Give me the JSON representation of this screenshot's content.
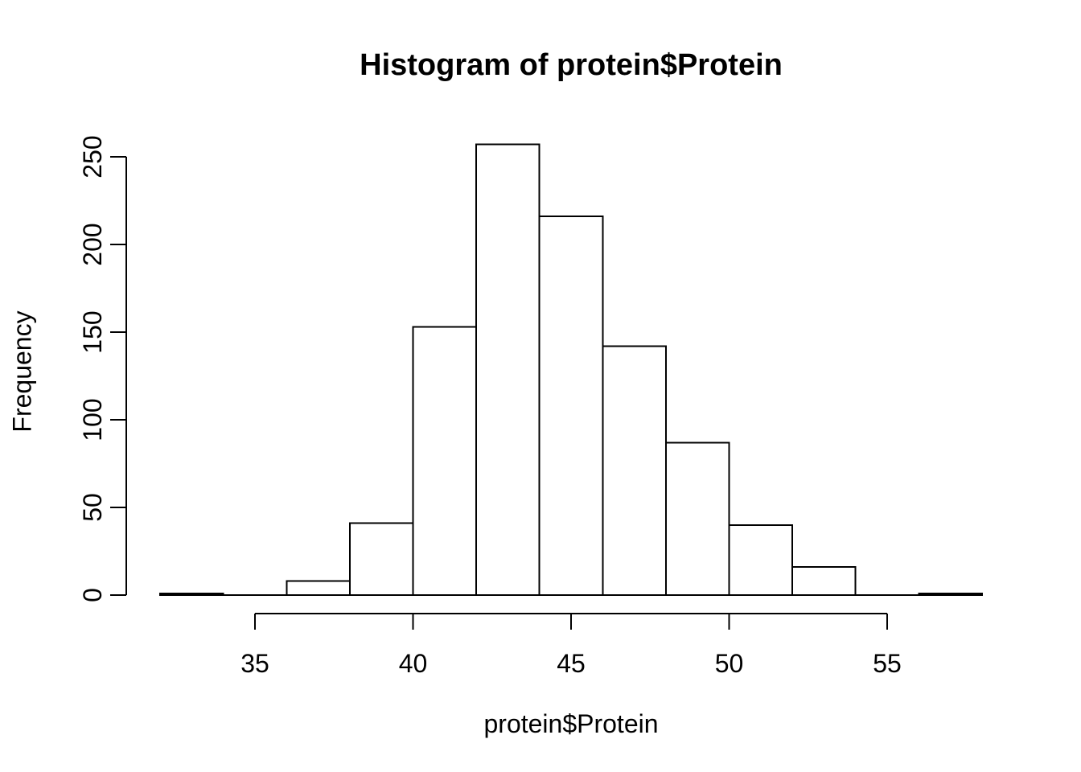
{
  "chart_data": {
    "type": "bar",
    "subtype": "histogram",
    "title": "Histogram of protein$Protein",
    "xlabel": "protein$Protein",
    "ylabel": "Frequency",
    "bin_breaks": [
      32,
      34,
      36,
      38,
      40,
      42,
      44,
      46,
      48,
      50,
      52,
      54,
      56,
      58
    ],
    "counts": [
      1,
      0,
      8,
      41,
      153,
      257,
      216,
      142,
      87,
      40,
      16,
      0,
      1
    ],
    "x_ticks": [
      35,
      40,
      45,
      50,
      55
    ],
    "y_ticks": [
      0,
      50,
      100,
      150,
      200,
      250
    ],
    "xlim": [
      32,
      58
    ],
    "ylim": [
      0,
      257
    ],
    "grid": false,
    "legend": null,
    "bar_fill": "#ffffff",
    "bar_stroke": "#000000",
    "axis_color": "#000000",
    "background": "#ffffff"
  }
}
